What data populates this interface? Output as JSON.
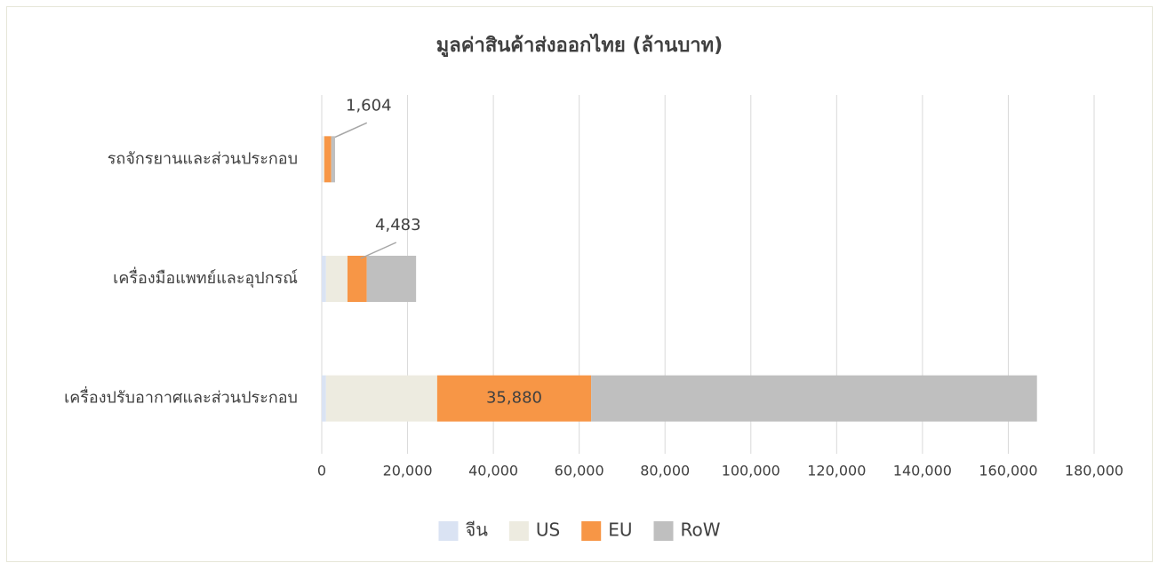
{
  "chart_data": {
    "type": "bar",
    "orientation": "horizontal",
    "stacked": true,
    "title": "มูลค่าสินค้าส่งออกไทย (ล้านบาท)",
    "categories": [
      "รถจักรยานและส่วนประกอบ",
      "เครื่องมือแพทย์และอุปกรณ์",
      "เครื่องปรับอากาศและส่วนประกอบ"
    ],
    "series": [
      {
        "name": "จีน",
        "color": "#dae3f3",
        "values": [
          200,
          1000,
          1000
        ]
      },
      {
        "name": "US",
        "color": "#edebe0",
        "values": [
          400,
          5000,
          25900
        ]
      },
      {
        "name": "EU",
        "color": "#f79646",
        "values": [
          1604,
          4483,
          35880
        ],
        "value_labels": [
          "1,604",
          "4,483",
          "35,880"
        ]
      },
      {
        "name": "RoW",
        "color": "#bfbfbf",
        "values": [
          900,
          11500,
          103900
        ]
      }
    ],
    "xlim": [
      0,
      180000
    ],
    "xticks": [
      0,
      {
        "value": 20000,
        "label": "20,000"
      },
      {
        "value": 40000,
        "label": "40,000"
      },
      {
        "value": 60000,
        "label": "60,000"
      },
      {
        "value": 80000,
        "label": "80,000"
      },
      {
        "value": 100000,
        "label": "100,000"
      },
      {
        "value": 120000,
        "label": "120,000"
      },
      {
        "value": 140000,
        "label": "140,000"
      },
      {
        "value": 160000,
        "label": "160,000"
      },
      {
        "value": 180000,
        "label": "180,000"
      }
    ],
    "grid": true,
    "legend": "bottom"
  }
}
